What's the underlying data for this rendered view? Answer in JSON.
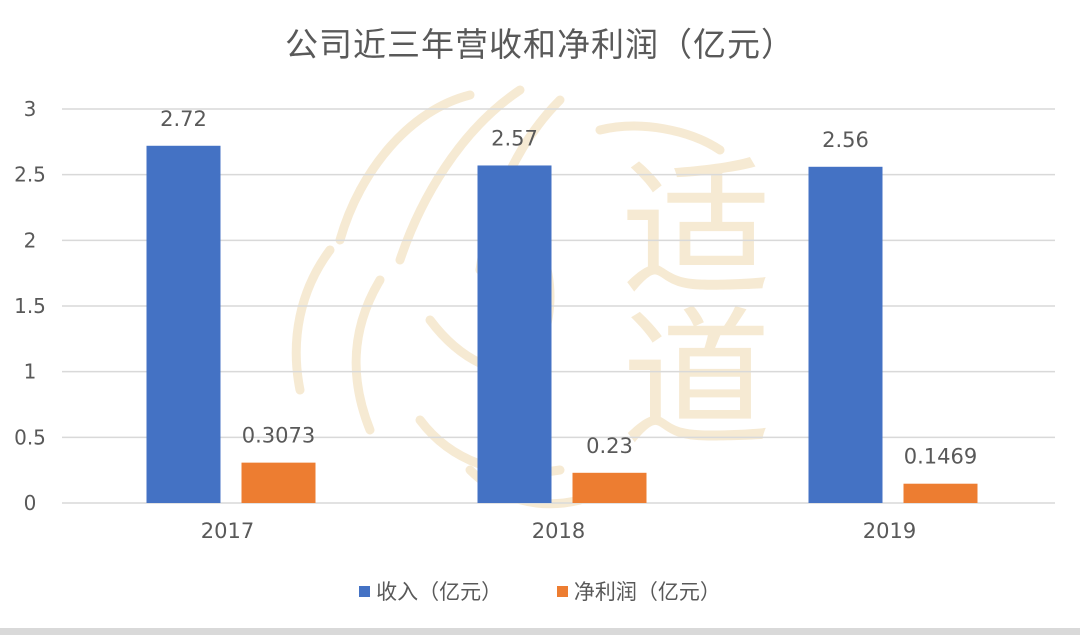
{
  "colors": {
    "revenue": "#4472C4",
    "profit": "#ED7D31",
    "gridline": "#d9d9d9",
    "text": "#595959",
    "watermark": "#f0dcb8"
  },
  "watermark": {
    "text": "适道",
    "icon": "lion-head-icon"
  },
  "chart_data": {
    "type": "bar",
    "title": "公司近三年营收和净利润（亿元）",
    "xlabel": "",
    "ylabel": "",
    "categories": [
      "2017",
      "2018",
      "2019"
    ],
    "ylim": [
      0,
      3
    ],
    "yticks": [
      "0",
      "0.5",
      "1",
      "1.5",
      "2",
      "2.5",
      "3"
    ],
    "grid": true,
    "legend_position": "bottom",
    "series": [
      {
        "name": "收入（亿元）",
        "values": [
          2.72,
          2.57,
          2.56
        ],
        "labels": [
          "2.72",
          "2.57",
          "2.56"
        ],
        "color": "#4472C4"
      },
      {
        "name": "净利润（亿元）",
        "values": [
          0.3073,
          0.23,
          0.1469
        ],
        "labels": [
          "0.3073",
          "0.23",
          "0.1469"
        ],
        "color": "#ED7D31"
      }
    ]
  }
}
